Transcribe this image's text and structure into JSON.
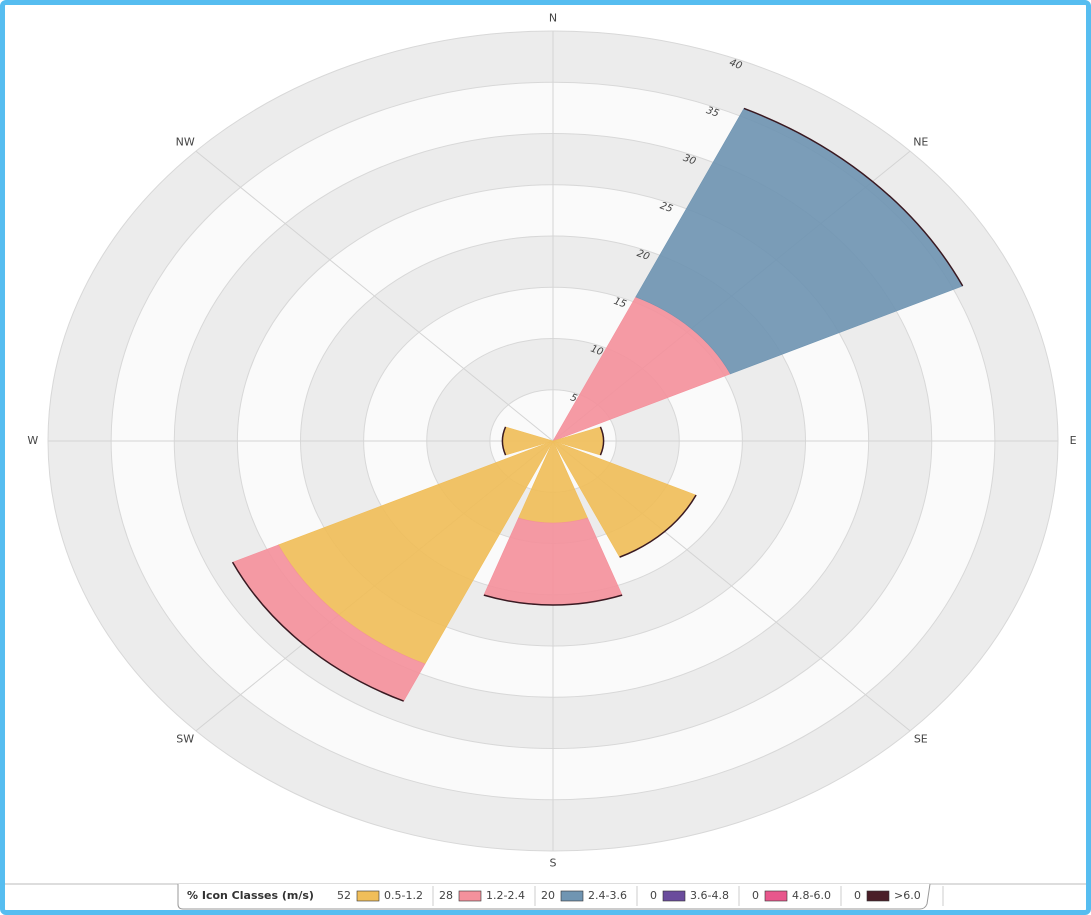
{
  "chart_data": {
    "type": "windrose",
    "categories": [
      "N",
      "NE",
      "E",
      "SE",
      "S",
      "SW",
      "W",
      "NW"
    ],
    "rlim": [
      0,
      40
    ],
    "rticks": [
      5,
      10,
      15,
      20,
      25,
      30,
      35,
      40
    ],
    "legend_title": "% Icon  Classes (m/s)",
    "series": [
      {
        "name": "0.5-1.2",
        "color": "#f0be5a",
        "total": 52,
        "values": [
          0,
          0,
          4,
          12.5,
          8,
          24,
          4,
          0
        ]
      },
      {
        "name": "1.2-2.4",
        "color": "#f4919c",
        "total": 28,
        "values": [
          0,
          15.5,
          0,
          0,
          8,
          4,
          0,
          0
        ]
      },
      {
        "name": "2.4-3.6",
        "color": "#7095b2",
        "total": 20,
        "values": [
          0,
          20.3,
          0,
          0,
          0,
          0,
          0,
          0
        ]
      },
      {
        "name": "3.6-4.8",
        "color": "#6a4c9c",
        "total": 0,
        "values": [
          0,
          0,
          0,
          0,
          0,
          0,
          0,
          0
        ]
      },
      {
        "name": "4.8-6.0",
        "color": "#e8578c",
        "total": 0,
        "values": [
          0,
          0,
          0,
          0,
          0,
          0,
          0,
          0
        ]
      },
      {
        "name": ">6.0",
        "color": "#4a1f28",
        "total": 0,
        "values": [
          0,
          0,
          0,
          0,
          0,
          0,
          0,
          0
        ]
      }
    ]
  }
}
